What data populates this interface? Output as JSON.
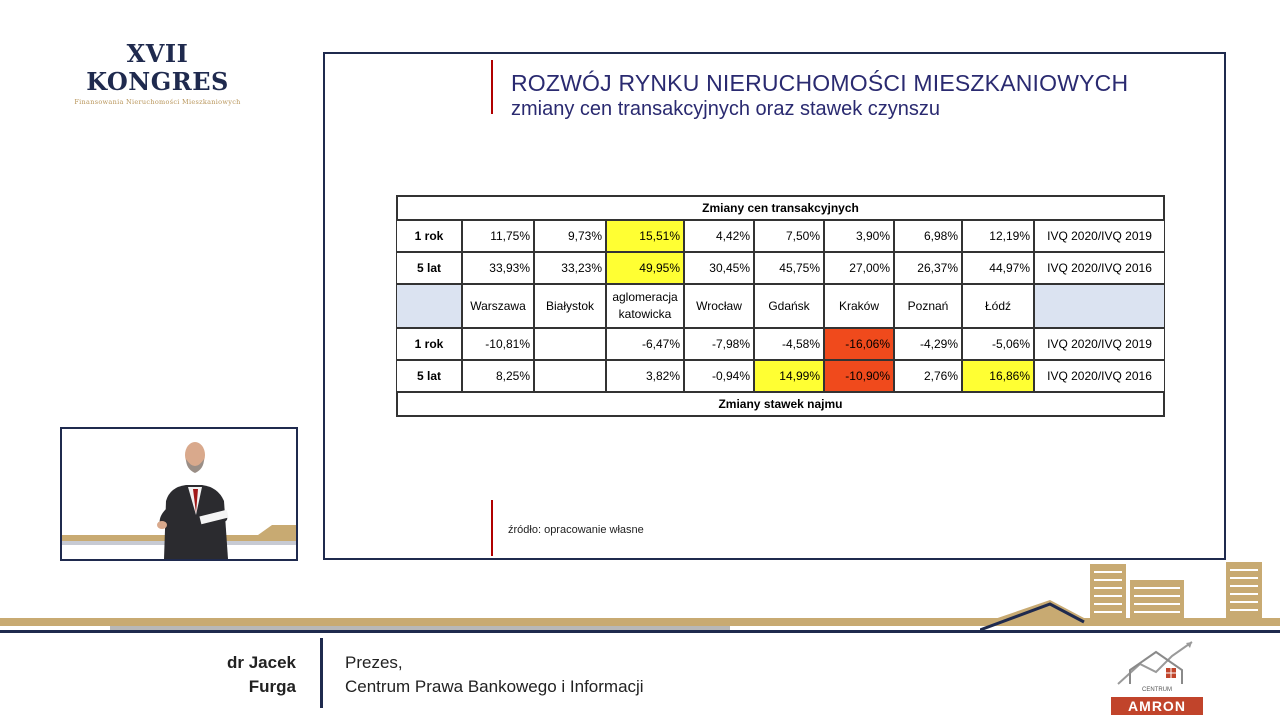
{
  "logo": {
    "title": "XVII KONGRES",
    "subtitle": "Finansowania Nieruchomości Mieszkaniowych"
  },
  "slide": {
    "title": "ROZWÓJ RYNKU NIERUCHOMOŚCI MIESZKANIOWYCH",
    "subtitle": "zmiany cen transakcyjnych oraz stawek czynszu",
    "source": "źródło: opracowanie własne",
    "table": {
      "top_header": "Zmiany cen transakcyjnych",
      "bottom_header": "Zmiany stawek najmu",
      "cities": [
        "Warszawa",
        "Białystok",
        "aglomeracja katowicka",
        "Wrocław",
        "Gdańsk",
        "Kraków",
        "Poznań",
        "Łódź"
      ],
      "price_rows": [
        {
          "label": "1 rok",
          "values": [
            "11,75%",
            "9,73%",
            "15,51%",
            "4,42%",
            "7,50%",
            "3,90%",
            "6,98%",
            "12,19%"
          ],
          "period": "IVQ 2020/IVQ 2019"
        },
        {
          "label": "5 lat",
          "values": [
            "33,93%",
            "33,23%",
            "49,95%",
            "30,45%",
            "45,75%",
            "27,00%",
            "26,37%",
            "44,97%"
          ],
          "period": "IVQ 2020/IVQ 2016"
        }
      ],
      "rent_rows": [
        {
          "label": "1 rok",
          "values": [
            "-10,81%",
            "",
            "-6,47%",
            "-7,98%",
            "-4,58%",
            "-16,06%",
            "-4,29%",
            "-5,06%"
          ],
          "period": "IVQ 2020/IVQ 2019"
        },
        {
          "label": "5 lat",
          "values": [
            "8,25%",
            "",
            "3,82%",
            "-0,94%",
            "14,99%",
            "-10,90%",
            "2,76%",
            "16,86%"
          ],
          "period": "IVQ 2020/IVQ 2016"
        }
      ]
    }
  },
  "speaker": {
    "first_line": "dr Jacek",
    "second_line": "Furga",
    "role_line1": "Prezes,",
    "role_line2": "Centrum Prawa Bankowego i Informacji"
  },
  "sponsor": {
    "small": "CENTRUM",
    "label": "AMRON"
  },
  "colors": {
    "navy": "#1f2a4e",
    "gold": "#c8aa72",
    "highlight_yellow": "#ffff33",
    "highlight_red": "#f04a1c"
  }
}
